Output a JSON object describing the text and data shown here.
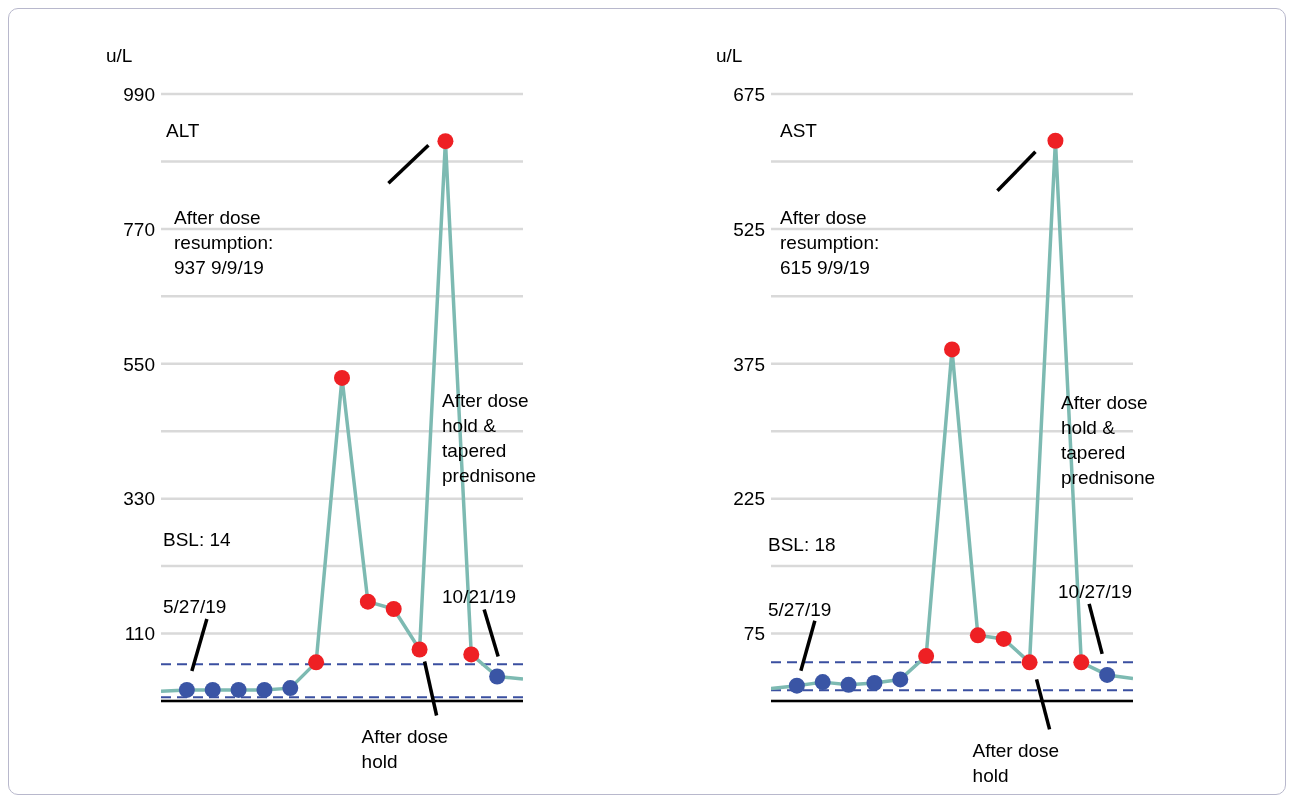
{
  "chart_data": [
    {
      "type": "line",
      "title": "ALT",
      "ylabel": "u/L",
      "categories": [
        null,
        null,
        null,
        null,
        null,
        null,
        null,
        null,
        null,
        null,
        null,
        null,
        null,
        null,
        null
      ],
      "series": [
        {
          "color": "#7dbab2",
          "values": [
            16,
            18,
            18,
            18,
            18,
            21,
            63,
            527,
            162,
            150,
            84,
            913,
            76,
            40,
            36
          ],
          "colors": [
            null,
            "#3a55a5",
            "#3a55a5",
            "#3a55a5",
            "#3a55a5",
            "#3a55a5",
            "#ee2024",
            "#ee2024",
            "#ee2024",
            "#ee2024",
            "#ee2024",
            "#ee2024",
            "#ee2024",
            "#3a55a5",
            null
          ]
        }
      ],
      "ylim": [
        0,
        990
      ],
      "yticks": [
        110,
        {
          "value": 220,
          "label": null
        },
        330,
        {
          "value": 440,
          "label": null
        },
        550,
        {
          "value": 660,
          "label": null
        },
        770,
        {
          "value": 880,
          "label": null
        },
        990
      ],
      "grid": "y",
      "tick_labels": "y",
      "marker": "circle",
      "line_style": "solid",
      "ref_lines": [
        {
          "axis": "y",
          "value": 60,
          "color": "#3a4fa0",
          "line_style": "dashed"
        },
        {
          "axis": "y",
          "value": 6,
          "color": "#3a4fa0",
          "line_style": "dashed"
        }
      ],
      "annotations": [
        "After dose resumption: 937 9/9/19",
        "BSL: 14",
        "5/27/19",
        "After dose hold",
        "After dose hold & tapered prednisone",
        "10/21/19"
      ]
    },
    {
      "type": "line",
      "title": "AST",
      "ylabel": "u/L",
      "categories": [
        null,
        null,
        null,
        null,
        null,
        null,
        null,
        null,
        null,
        null,
        null,
        null,
        null,
        null,
        null
      ],
      "series": [
        {
          "color": "#7dbab2",
          "values": [
            14,
            17,
            21,
            18,
            20,
            24,
            50,
            391,
            73,
            69,
            43,
            623,
            43,
            29,
            25
          ],
          "colors": [
            null,
            "#3a55a5",
            "#3a55a5",
            "#3a55a5",
            "#3a55a5",
            "#3a55a5",
            "#ee2024",
            "#ee2024",
            "#ee2024",
            "#ee2024",
            "#ee2024",
            "#ee2024",
            "#ee2024",
            "#3a55a5",
            null
          ]
        }
      ],
      "ylim": [
        0,
        675
      ],
      "yticks": [
        75,
        {
          "value": 150,
          "label": null
        },
        225,
        {
          "value": 300,
          "label": null
        },
        375,
        {
          "value": 450,
          "label": null
        },
        525,
        {
          "value": 600,
          "label": null
        },
        675
      ],
      "grid": "y",
      "tick_labels": "y",
      "marker": "circle",
      "line_style": "solid",
      "ref_lines": [
        {
          "axis": "y",
          "value": 43,
          "color": "#3a4fa0",
          "line_style": "dashed"
        },
        {
          "axis": "y",
          "value": 12,
          "color": "#3a4fa0",
          "line_style": "dashed"
        }
      ],
      "annotations": [
        "After dose resumption: 615 9/9/19",
        "BSL: 18",
        "5/27/19",
        "After dose hold",
        "After dose hold & tapered prednisone",
        "10/27/19"
      ]
    }
  ]
}
